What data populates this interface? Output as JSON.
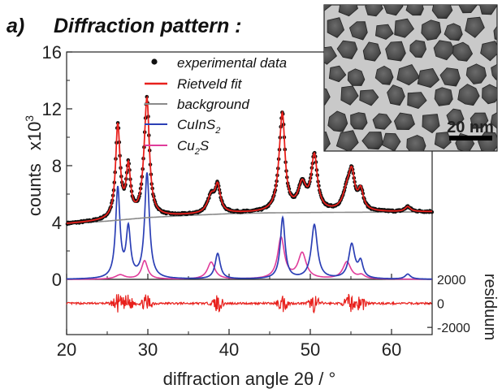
{
  "panel_label": "a)",
  "title": "Diffraction pattern :",
  "colors": {
    "experimental": "#111111",
    "rietveld": "#e8201c",
    "background": "#8a8a8a",
    "cuins2": "#2b3fb5",
    "cu2s": "#e03c9a",
    "residuum": "#e8201c"
  },
  "chart_data": [
    {
      "type": "line",
      "name": "main-pattern",
      "xlim": [
        20,
        65
      ],
      "ylim": [
        0,
        16
      ],
      "ylabel_main": "counts",
      "ylabel_exponent_base": "x10",
      "ylabel_exponent": "3",
      "yticks": [
        0,
        4,
        8,
        12,
        16
      ],
      "legend": {
        "position": "top-right",
        "experimental": "experimental data",
        "rietveld": "Rietveld fit",
        "background": "background",
        "cuins2_main": "CuInS",
        "cuins2_sub": "2",
        "cu2s_pre": "Cu",
        "cu2s_sub": "2",
        "cu2s_post": "S"
      },
      "background": {
        "x": [
          20,
          25,
          30,
          35,
          40,
          45,
          50,
          55,
          60,
          65
        ],
        "y": [
          3.9,
          4.1,
          4.35,
          4.5,
          4.62,
          4.68,
          4.7,
          4.72,
          4.73,
          4.75
        ]
      },
      "cuins2_peaks": [
        {
          "center": 26.3,
          "height": 6.3,
          "width": 0.32
        },
        {
          "center": 27.6,
          "height": 3.4,
          "width": 0.32
        },
        {
          "center": 29.9,
          "height": 7.4,
          "width": 0.35
        },
        {
          "center": 38.6,
          "height": 1.8,
          "width": 0.38
        },
        {
          "center": 46.6,
          "height": 4.3,
          "width": 0.35
        },
        {
          "center": 50.5,
          "height": 3.8,
          "width": 0.45
        },
        {
          "center": 55.1,
          "height": 2.4,
          "width": 0.45
        },
        {
          "center": 56.2,
          "height": 1.1,
          "width": 0.35
        },
        {
          "center": 62.0,
          "height": 0.35,
          "width": 0.4
        }
      ],
      "cu2s_peaks": [
        {
          "center": 26.6,
          "height": 0.3,
          "width": 0.7
        },
        {
          "center": 29.6,
          "height": 1.3,
          "width": 0.45
        },
        {
          "center": 37.8,
          "height": 1.2,
          "width": 0.55
        },
        {
          "center": 46.4,
          "height": 2.9,
          "width": 0.5
        },
        {
          "center": 49.0,
          "height": 1.8,
          "width": 0.6
        },
        {
          "center": 54.5,
          "height": 1.2,
          "width": 0.6
        },
        {
          "center": 56.3,
          "height": 0.25,
          "width": 0.5
        }
      ]
    },
    {
      "type": "line",
      "name": "residuum",
      "xlim": [
        20,
        65
      ],
      "ylim": [
        -2600,
        2000
      ],
      "ylabel": "residuum",
      "yticks": [
        -2000,
        0,
        2000
      ],
      "xticks": [
        20,
        30,
        40,
        50,
        60
      ],
      "xlabel": "diffraction angle 2θ / °"
    }
  ],
  "inset": {
    "scale_bar_label": "20 nm"
  }
}
